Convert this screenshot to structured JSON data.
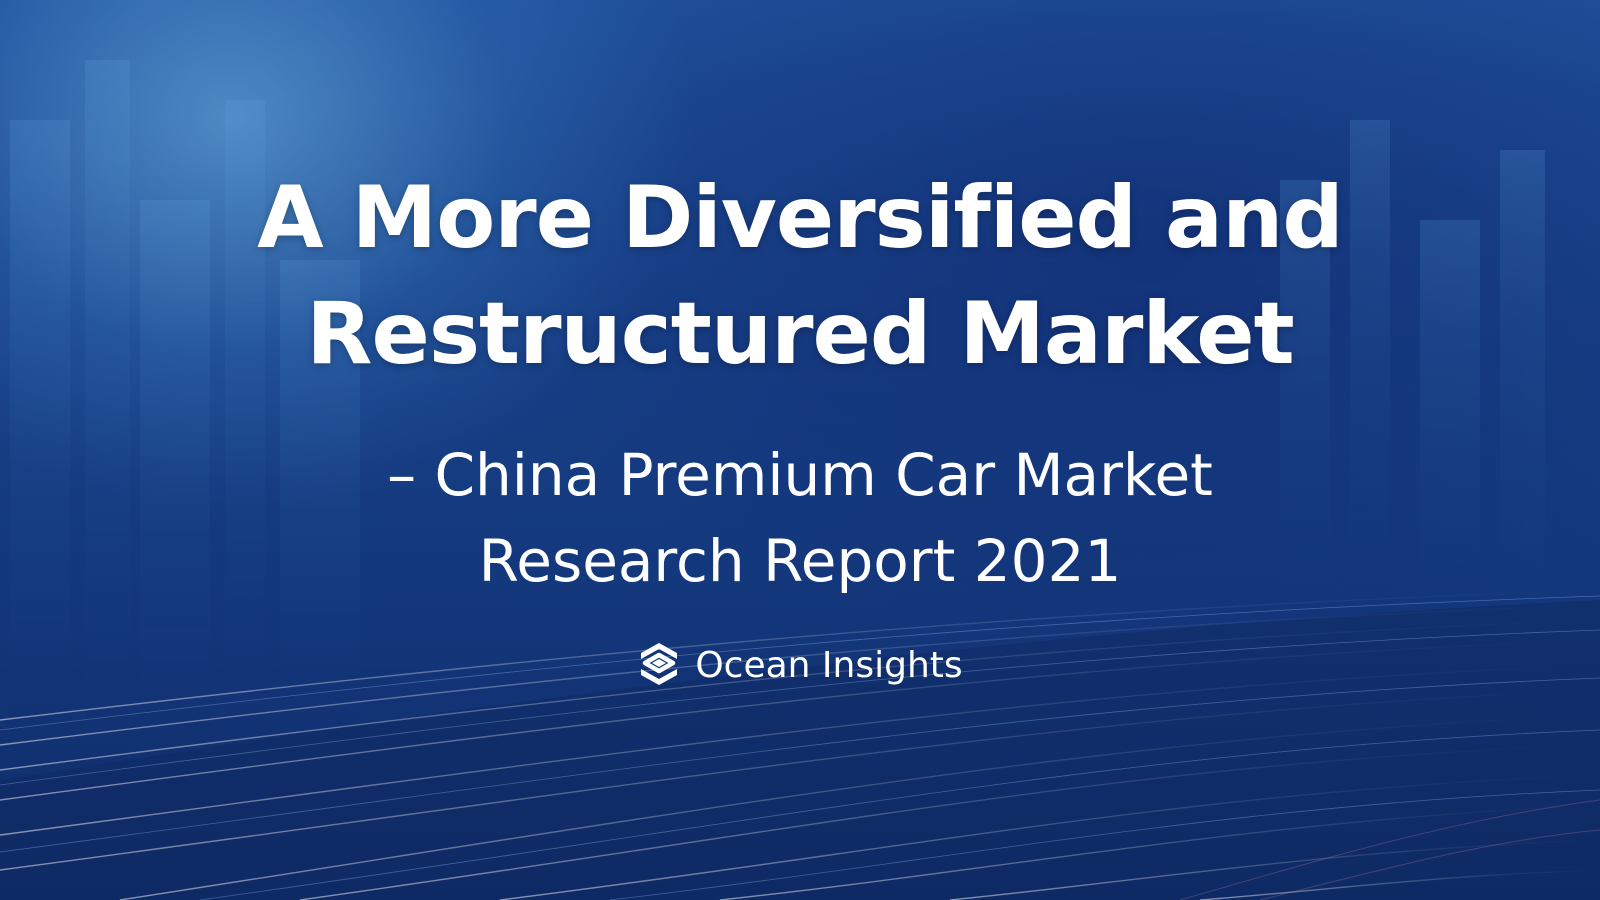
{
  "slide": {
    "title_line1": "A More Diversified and",
    "title_line2": "Restructured Market",
    "subtitle_line1": "– China Premium Car Market",
    "subtitle_line2": "Research Report 2021",
    "brand_name": "Ocean Insights",
    "brand_logo_icon": "layered-diamond-logo-icon"
  },
  "colors": {
    "background_top": "#1f4f9a",
    "background_bottom": "#0f2c68",
    "text": "#ffffff"
  }
}
